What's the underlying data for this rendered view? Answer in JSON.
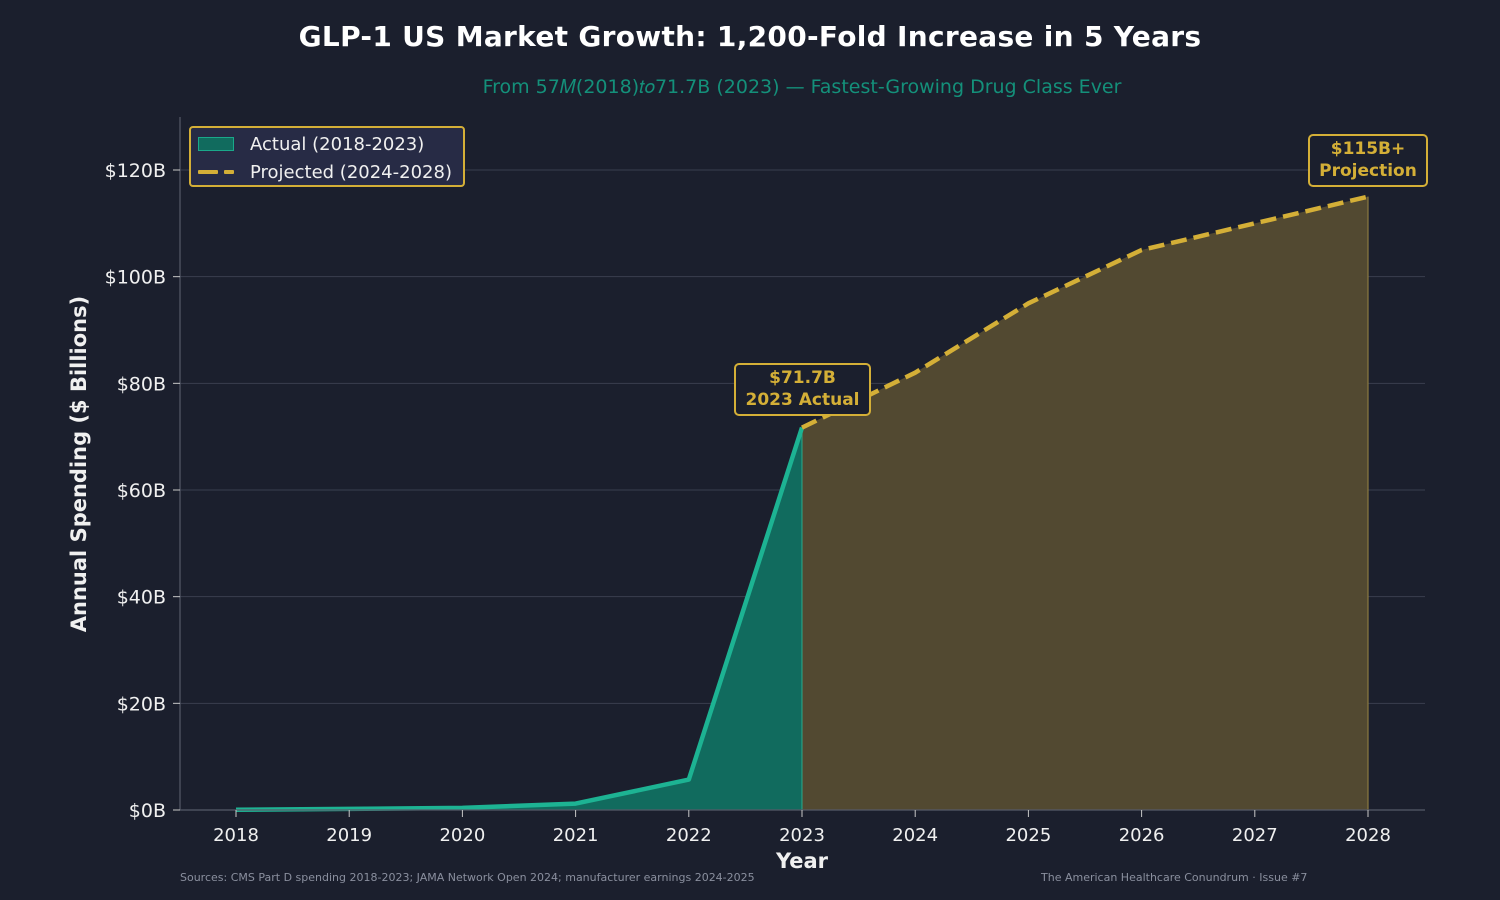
{
  "title": "GLP-1 US Market Growth: 1,200-Fold Increase in 5 Years",
  "subtitle": "From 57𝑀(2018)𝑡𝑜71.7B (2023) — Fastest-Growing Drug Class Ever",
  "source_note": "Sources: CMS Part D spending 2018-2023; JAMA Network Open 2024; manufacturer earnings 2024-2025",
  "credit_note": "The American Healthcare Conundrum · Issue #7",
  "colors": {
    "background": "#1b1f2d",
    "actual_line": "#1db393",
    "actual_fill": "#116b5e",
    "projected_line": "#d4af37",
    "projected_fill": "#524931"
  },
  "legend": {
    "placement": "top-left",
    "items": [
      {
        "label": "Actual (2018-2023)",
        "style": "area"
      },
      {
        "label": "Projected (2024-2028)",
        "style": "dashed-line"
      }
    ]
  },
  "annotations": [
    {
      "line1": "$71.7B",
      "line2": "2023 Actual",
      "x": 2023,
      "y": 71.7
    },
    {
      "line1": "$115B+",
      "line2": "Projection",
      "x": 2028,
      "y": 115
    }
  ],
  "chart_data": {
    "type": "area",
    "xlabel": "Year",
    "ylabel": "Annual Spending ($ Billions)",
    "xlim": [
      2017.5,
      2028.5
    ],
    "ylim": [
      0,
      130
    ],
    "x_ticks": [
      "2018",
      "2019",
      "2020",
      "2021",
      "2022",
      "2023",
      "2024",
      "2025",
      "2026",
      "2027",
      "2028"
    ],
    "y_ticks": [
      0,
      20,
      40,
      60,
      80,
      100,
      120
    ],
    "y_tick_labels": [
      "$0B",
      "$20B",
      "$40B",
      "$60B",
      "$80B",
      "$100B",
      "$120B"
    ],
    "grid": true,
    "series": [
      {
        "name": "Actual (2018-2023)",
        "x": [
          2018,
          2019,
          2020,
          2021,
          2022,
          2023
        ],
        "values": [
          0.057,
          0.2,
          0.4,
          1.2,
          5.7,
          71.7
        ]
      },
      {
        "name": "Projected (2024-2028)",
        "x": [
          2023,
          2024,
          2025,
          2026,
          2027,
          2028
        ],
        "values": [
          71.7,
          82,
          95,
          105,
          110,
          115
        ]
      }
    ]
  }
}
